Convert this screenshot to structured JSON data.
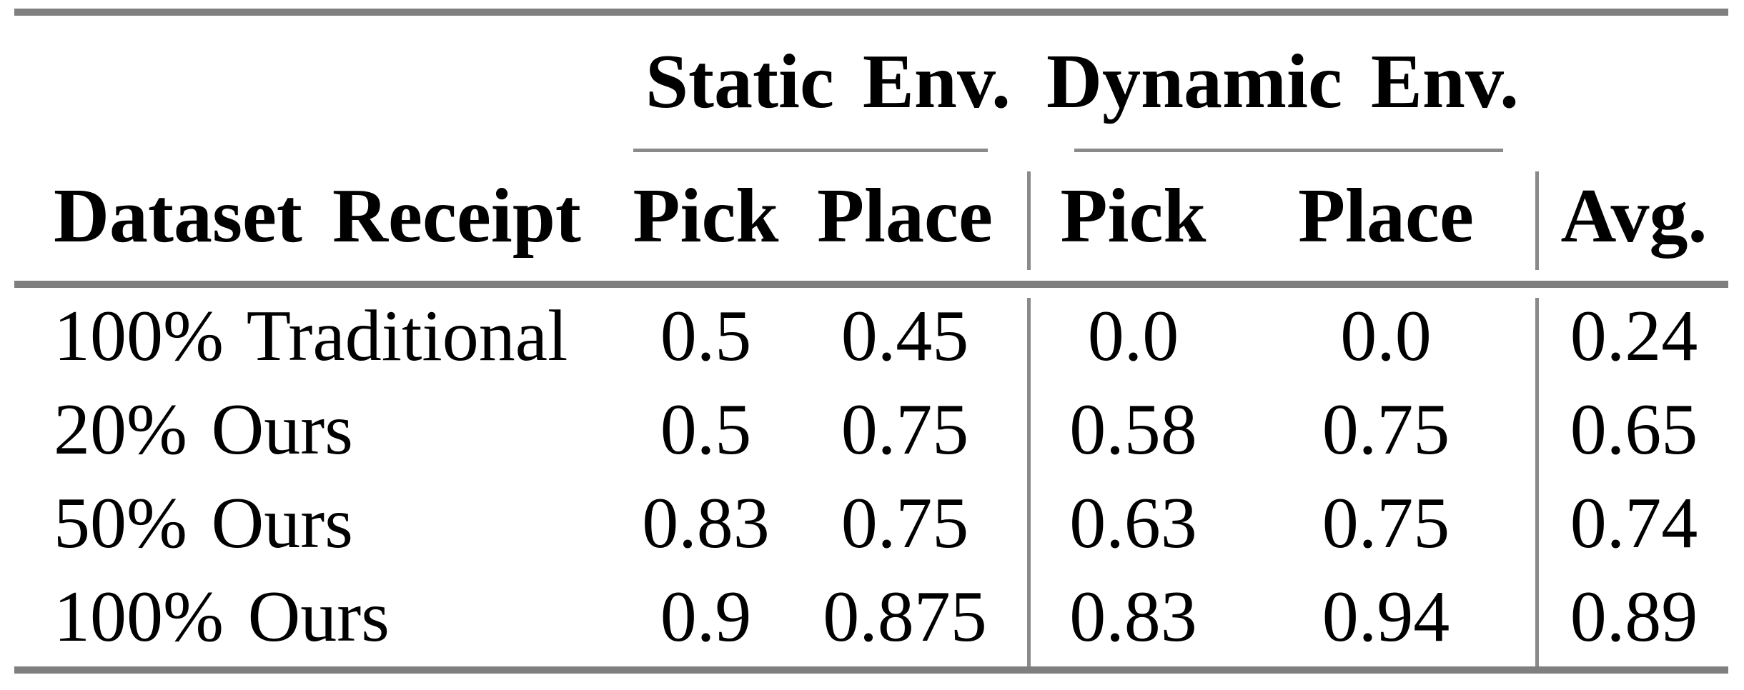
{
  "colors": {
    "thick_rule": "#7f7f7f",
    "thin_rule": "#8a8a8a",
    "text": "#000000",
    "background": "#ffffff"
  },
  "table": {
    "group_headers": [
      {
        "label": "Static Env."
      },
      {
        "label": "Dynamic Env."
      }
    ],
    "column_headers": {
      "dataset": "Dataset Receipt",
      "static_pick": "Pick",
      "static_place": "Place",
      "dynamic_pick": "Pick",
      "dynamic_place": "Place",
      "avg": "Avg."
    },
    "rows": [
      {
        "dataset": "100% Traditional",
        "static_pick": "0.5",
        "static_place": "0.45",
        "dynamic_pick": "0.0",
        "dynamic_place": "0.0",
        "avg": "0.24"
      },
      {
        "dataset": "20% Ours",
        "static_pick": "0.5",
        "static_place": "0.75",
        "dynamic_pick": "0.58",
        "dynamic_place": "0.75",
        "avg": "0.65"
      },
      {
        "dataset": "50% Ours",
        "static_pick": "0.83",
        "static_place": "0.75",
        "dynamic_pick": "0.63",
        "dynamic_place": "0.75",
        "avg": "0.74"
      },
      {
        "dataset": "100% Ours",
        "static_pick": "0.9",
        "static_place": "0.875",
        "dynamic_pick": "0.83",
        "dynamic_place": "0.94",
        "avg": "0.89"
      }
    ]
  }
}
